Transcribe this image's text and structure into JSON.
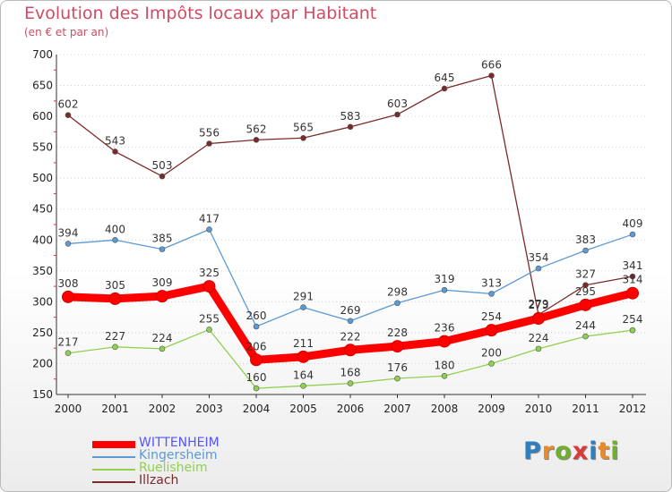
{
  "title": "Evolution des Impôts locaux par Habitant",
  "subtitle": "(en € et par an)",
  "logo_text": "Proxiti",
  "colors": {
    "title": "#d24a63",
    "axis": "#333333",
    "grid": "#d0d0d0",
    "logo": [
      "#2e7fc1",
      "#e68a2e",
      "#6fae2e",
      "#d93a3a",
      "#2e7fc1",
      "#e68a2e",
      "#6fae2e"
    ]
  },
  "chart_data": {
    "type": "line",
    "title": "Evolution des Impôts locaux par Habitant",
    "subtitle": "(en € et par an)",
    "xlabel": "",
    "ylabel": "",
    "categories": [
      "2000",
      "2001",
      "2002",
      "2003",
      "2004",
      "2005",
      "2006",
      "2007",
      "2008",
      "2009",
      "2010",
      "2011",
      "2012"
    ],
    "ylim": [
      150,
      700
    ],
    "yticks": [
      150,
      200,
      250,
      300,
      350,
      400,
      450,
      500,
      550,
      600,
      650,
      700
    ],
    "grid": "horizontal",
    "legend_position": "bottom-left",
    "series": [
      {
        "name": "WITTENHEIM",
        "color": "#ff0000",
        "label_color": "#5555ff",
        "values": [
          308,
          305,
          309,
          325,
          206,
          211,
          222,
          228,
          236,
          254,
          273,
          295,
          314
        ],
        "labels": [
          "308",
          "305",
          "309",
          "325",
          "206",
          "211",
          "222",
          "228",
          "236",
          "254",
          "273",
          "295",
          "314"
        ],
        "thick": true
      },
      {
        "name": "Kingersheim",
        "color": "#5a9ad5",
        "label_color": "#5a9ad5",
        "values": [
          394,
          400,
          385,
          417,
          260,
          291,
          269,
          298,
          319,
          313,
          354,
          383,
          409
        ],
        "labels": [
          "394",
          "400",
          "385",
          "417",
          "260",
          "291",
          "269",
          "298",
          "319",
          "313",
          "354",
          "383",
          "409"
        ],
        "thick": false
      },
      {
        "name": "Ruelisheim",
        "color": "#8fd14f",
        "label_color": "#8fd14f",
        "values": [
          217,
          227,
          224,
          255,
          160,
          164,
          168,
          176,
          180,
          200,
          224,
          244,
          254
        ],
        "labels": [
          "217",
          "227",
          "224",
          "255",
          "160",
          "164",
          "168",
          "176",
          "180",
          "200",
          "224",
          "244",
          "254"
        ],
        "thick": false
      },
      {
        "name": "Illzach",
        "color": "#7b2a2a",
        "label_color": "#7b2a2a",
        "values": [
          602,
          543,
          503,
          556,
          562,
          565,
          583,
          603,
          645,
          666,
          279,
          327,
          341
        ],
        "labels": [
          "602",
          "543",
          "503",
          "556",
          "562",
          "565",
          "583",
          "603",
          "645",
          "666",
          "279",
          "327",
          "341"
        ],
        "thick": false
      }
    ]
  }
}
